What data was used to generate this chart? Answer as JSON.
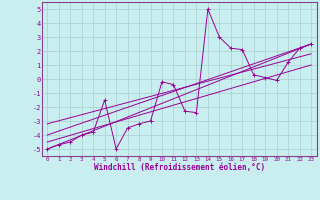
{
  "xlabel": "Windchill (Refroidissement éolien,°C)",
  "bg_color": "#c8eef0",
  "grid_color": "#aacccc",
  "line_color": "#990099",
  "axis_color": "#884488",
  "xlim": [
    -0.5,
    23.5
  ],
  "ylim": [
    -5.5,
    5.5
  ],
  "yticks": [
    -5,
    -4,
    -3,
    -2,
    -1,
    0,
    1,
    2,
    3,
    4,
    5
  ],
  "xticks": [
    0,
    1,
    2,
    3,
    4,
    5,
    6,
    7,
    8,
    9,
    10,
    11,
    12,
    13,
    14,
    15,
    16,
    17,
    18,
    19,
    20,
    21,
    22,
    23
  ],
  "series": [
    [
      0,
      -5.0
    ],
    [
      1,
      -4.7
    ],
    [
      2,
      -4.5
    ],
    [
      3,
      -4.0
    ],
    [
      4,
      -3.8
    ],
    [
      5,
      -1.5
    ],
    [
      6,
      -5.0
    ],
    [
      7,
      -3.5
    ],
    [
      8,
      -3.2
    ],
    [
      9,
      -3.0
    ],
    [
      10,
      -0.2
    ],
    [
      11,
      -0.4
    ],
    [
      12,
      -2.3
    ],
    [
      13,
      -2.4
    ],
    [
      14,
      5.0
    ],
    [
      15,
      3.0
    ],
    [
      16,
      2.2
    ],
    [
      17,
      2.1
    ],
    [
      18,
      0.3
    ],
    [
      19,
      0.1
    ],
    [
      20,
      -0.1
    ],
    [
      21,
      1.2
    ],
    [
      22,
      2.2
    ],
    [
      23,
      2.5
    ]
  ],
  "reg_lines": [
    {
      "x": [
        0,
        23
      ],
      "y": [
        -5.0,
        2.5
      ]
    },
    {
      "x": [
        0,
        23
      ],
      "y": [
        -4.5,
        1.0
      ]
    },
    {
      "x": [
        0,
        23
      ],
      "y": [
        -4.0,
        2.5
      ]
    },
    {
      "x": [
        0,
        23
      ],
      "y": [
        -3.2,
        1.8
      ]
    }
  ]
}
